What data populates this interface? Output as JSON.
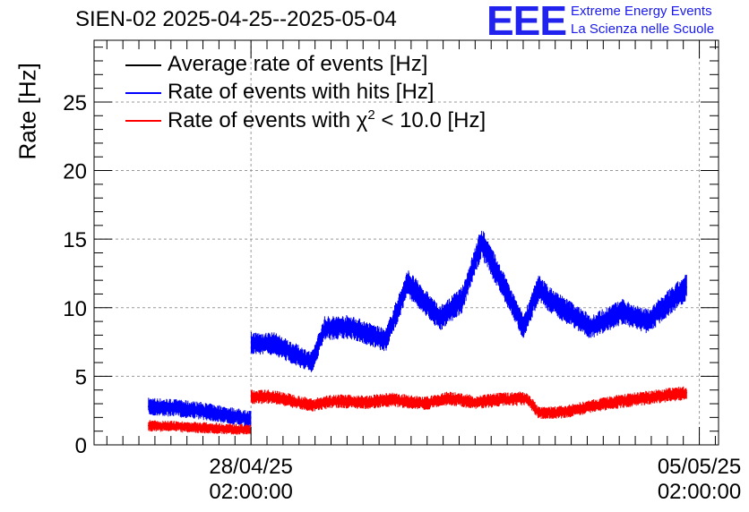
{
  "chart_data": {
    "type": "line",
    "title": "SIEN-02 2025-04-25--2025-05-04",
    "ylabel": "Rate [Hz]",
    "xlabel": "",
    "ylim": [
      0,
      29.5
    ],
    "xlim_days_from_2025-04-28_02:00:00": [
      -2.45,
      7.3
    ],
    "yticks": [
      0,
      5,
      10,
      15,
      20,
      25
    ],
    "xticks": [
      {
        "value": 0,
        "date": "28/04/25",
        "time": "02:00:00"
      },
      {
        "value": 7,
        "date": "05/05/25",
        "time": "02:00:00"
      }
    ],
    "grid": true,
    "legend_position": "top-left",
    "series": [
      {
        "name": "Average rate of events [Hz]",
        "color": "#000000",
        "x": [],
        "values": []
      },
      {
        "name": "Rate of events with hits [Hz]",
        "color": "#0000ff",
        "x": [
          -1.6,
          -1.2,
          -0.8,
          -0.4,
          -0.05,
          0.35,
          0.95,
          1.15,
          1.55,
          2.1,
          2.45,
          2.95,
          3.3,
          3.6,
          3.9,
          4.25,
          4.5,
          4.65,
          4.85,
          5.3,
          5.8,
          6.2,
          6.8
        ],
        "values": [
          2.8,
          2.7,
          2.5,
          2.2,
          1.9,
          7.4,
          6.0,
          8.5,
          8.6,
          7.6,
          11.8,
          9.2,
          10.6,
          14.8,
          12.0,
          8.6,
          11.5,
          10.6,
          10.0,
          8.6,
          9.7,
          9.0,
          11.5
        ]
      },
      {
        "name": "Rate of events with χ² < 10.0 [Hz]",
        "color": "#ff0000",
        "x": [
          -1.6,
          -1.0,
          -0.5,
          -0.05,
          0.35,
          0.95,
          1.3,
          1.8,
          2.2,
          2.7,
          3.1,
          3.5,
          3.9,
          4.3,
          4.5,
          4.9,
          5.3,
          5.8,
          6.3,
          6.8
        ],
        "values": [
          1.4,
          1.3,
          1.2,
          1.1,
          3.5,
          2.9,
          3.2,
          3.1,
          3.3,
          3.0,
          3.4,
          3.1,
          3.3,
          3.4,
          2.3,
          2.4,
          2.8,
          3.2,
          3.5,
          3.8
        ]
      }
    ],
    "legend_labels": {
      "avg": "Average rate of events [Hz]",
      "hits": "Rate of events with hits [Hz]",
      "chi_prefix": "Rate of events with ",
      "chi_symbol": "χ",
      "chi_sup": "2",
      "chi_suffix": " < 10.0 [Hz]"
    }
  },
  "logo": {
    "mark": "EEE",
    "line1": "Extreme Energy Events",
    "line2": "La Scienza nelle Scuole",
    "color": "#2222ee"
  }
}
